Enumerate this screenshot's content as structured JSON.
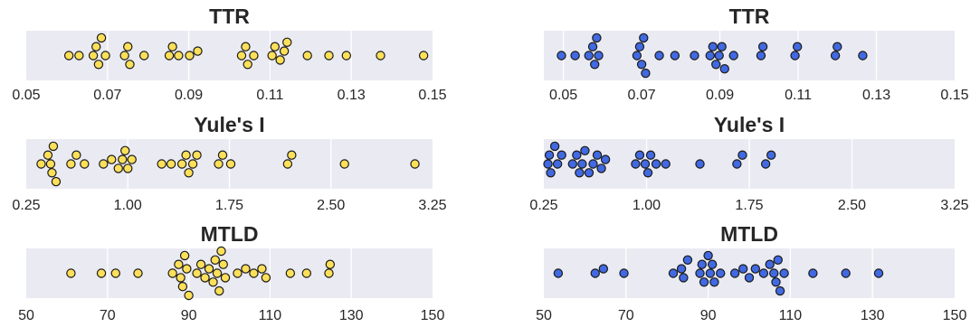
{
  "colors": {
    "yellow": "#fde05a",
    "blue": "#4169e1",
    "panel_bg": "#eaeaf2",
    "grid": "#ffffff",
    "marker_edge": "#1a1a1a"
  },
  "chart_data": [
    {
      "type": "scatter",
      "title": "TTR",
      "color": "yellow",
      "xlim": [
        0.05,
        0.15
      ],
      "ticks": [
        0.05,
        0.07,
        0.09,
        0.11,
        0.13,
        0.15
      ],
      "tick_labels": [
        "0.05",
        "0.07",
        "0.09",
        "0.11",
        "0.13",
        "0.15"
      ],
      "values": [
        0.0605,
        0.063,
        0.0665,
        0.0672,
        0.0678,
        0.0685,
        0.0695,
        0.0742,
        0.075,
        0.0755,
        0.079,
        0.0852,
        0.086,
        0.0875,
        0.0902,
        0.0922,
        0.103,
        0.104,
        0.1045,
        0.106,
        0.1105,
        0.1112,
        0.1125,
        0.1135,
        0.1142,
        0.1192,
        0.1245,
        0.1288,
        0.1372,
        0.1478
      ]
    },
    {
      "type": "scatter",
      "title": "TTR",
      "color": "blue",
      "xlim": [
        0.045,
        0.15
      ],
      "ticks": [
        0.05,
        0.07,
        0.09,
        0.11,
        0.13,
        0.15
      ],
      "tick_labels": [
        "0.05",
        "0.07",
        "0.09",
        "0.11",
        "0.13",
        "0.15"
      ],
      "values": [
        0.0495,
        0.053,
        0.0565,
        0.0575,
        0.058,
        0.0585,
        0.059,
        0.0688,
        0.0695,
        0.07,
        0.0705,
        0.071,
        0.0745,
        0.0785,
        0.0835,
        0.0875,
        0.0882,
        0.089,
        0.0898,
        0.0905,
        0.0912,
        0.0935,
        0.1005,
        0.101,
        0.1092,
        0.1098,
        0.1195,
        0.12,
        0.1265
      ]
    },
    {
      "type": "scatter",
      "title": "Yule's I",
      "color": "yellow",
      "xlim": [
        0.25,
        3.25
      ],
      "ticks": [
        0.25,
        1.0,
        1.75,
        2.5,
        3.25
      ],
      "tick_labels": [
        "0.25",
        "1.00",
        "1.75",
        "2.50",
        "3.25"
      ],
      "values": [
        0.36,
        0.41,
        0.43,
        0.44,
        0.45,
        0.47,
        0.58,
        0.62,
        0.68,
        0.82,
        0.88,
        0.93,
        0.96,
        0.98,
        1.0,
        1.03,
        1.25,
        1.32,
        1.4,
        1.43,
        1.45,
        1.48,
        1.51,
        1.67,
        1.7,
        1.76,
        2.18,
        2.21,
        2.6,
        3.12
      ]
    },
    {
      "type": "scatter",
      "title": "Yule's I",
      "color": "blue",
      "xlim": [
        0.25,
        3.25
      ],
      "ticks": [
        0.25,
        1.0,
        1.75,
        2.5,
        3.25
      ],
      "tick_labels": [
        "0.25",
        "1.00",
        "1.75",
        "2.50",
        "3.25"
      ],
      "values": [
        0.28,
        0.29,
        0.3,
        0.33,
        0.35,
        0.38,
        0.46,
        0.49,
        0.51,
        0.53,
        0.55,
        0.58,
        0.61,
        0.64,
        0.67,
        0.7,
        0.92,
        0.95,
        0.99,
        1.01,
        1.03,
        1.07,
        1.14,
        1.39,
        1.66,
        1.7,
        1.87,
        1.91
      ]
    },
    {
      "type": "scatter",
      "title": "MTLD",
      "color": "yellow",
      "xlim": [
        50,
        150
      ],
      "ticks": [
        50,
        70,
        90,
        110,
        130,
        150
      ],
      "tick_labels": [
        "50",
        "70",
        "90",
        "110",
        "130",
        "150"
      ],
      "values": [
        61,
        68.5,
        72,
        77.5,
        86,
        87.5,
        88,
        88.5,
        89,
        89.5,
        90,
        92,
        93,
        94,
        95,
        96,
        96.5,
        97,
        97.5,
        98,
        98.5,
        99,
        102,
        104,
        106,
        108,
        109,
        115,
        119,
        124.5,
        124.8
      ]
    },
    {
      "type": "scatter",
      "title": "MTLD",
      "color": "blue",
      "xlim": [
        50,
        150
      ],
      "ticks": [
        50,
        70,
        90,
        110,
        130,
        150
      ],
      "tick_labels": [
        "50",
        "70",
        "90",
        "110",
        "130",
        "150"
      ],
      "values": [
        53.5,
        62.5,
        64.5,
        69.5,
        81.5,
        83.5,
        84,
        85,
        88,
        88.5,
        89,
        90,
        90.5,
        91,
        91.5,
        93,
        96.5,
        98.5,
        100,
        101.5,
        103.5,
        105,
        106,
        106.5,
        107,
        107.5,
        108.5,
        115.5,
        123.5,
        131.5
      ]
    }
  ]
}
